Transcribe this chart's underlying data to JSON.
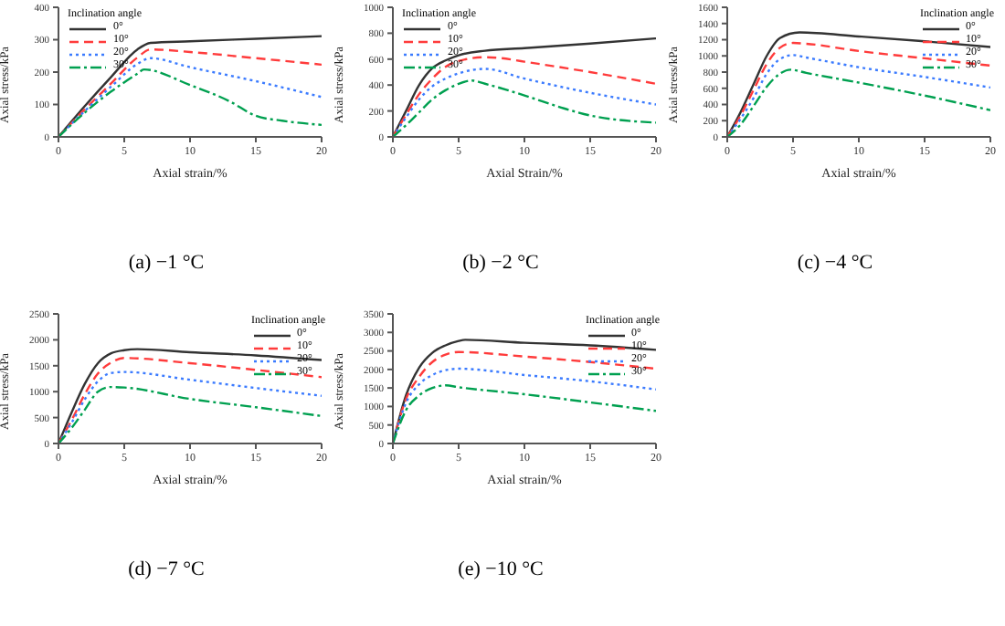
{
  "chart_data": [
    {
      "type": "line",
      "xlabel": "Axial strain/%",
      "ylabel": "Axial stress/kPa",
      "legend_title": "Inclination angle",
      "legend": "top left",
      "xlim": [
        0,
        20
      ],
      "xticks": [
        0,
        5,
        10,
        15,
        20
      ],
      "ylim": [
        0,
        400
      ],
      "yticks": [
        0,
        100,
        200,
        300,
        400
      ],
      "annotations": [
        "(a) −1 °C"
      ],
      "series": [
        {
          "name": "0°",
          "color": "#333333",
          "line_style": "solid",
          "x": [
            0,
            2,
            4,
            6,
            7,
            10,
            15,
            20
          ],
          "values": [
            0,
            95,
            185,
            270,
            290,
            295,
            303,
            311
          ]
        },
        {
          "name": "10°",
          "color": "#ff3b3b",
          "line_style": "dashed",
          "x": [
            0,
            2,
            4,
            6,
            7,
            10,
            15,
            20
          ],
          "values": [
            0,
            85,
            165,
            245,
            270,
            262,
            243,
            223
          ]
        },
        {
          "name": "20°",
          "color": "#3b7bff",
          "line_style": "dotted",
          "x": [
            0,
            2,
            4,
            6,
            7,
            10,
            15,
            20
          ],
          "values": [
            0,
            80,
            155,
            225,
            243,
            215,
            172,
            123
          ]
        },
        {
          "name": "30°",
          "color": "#00a050",
          "line_style": "dashdot",
          "x": [
            0,
            2,
            4,
            6,
            6.5,
            10,
            13,
            15,
            17,
            20
          ],
          "values": [
            0,
            75,
            140,
            195,
            208,
            160,
            110,
            65,
            50,
            37
          ]
        }
      ]
    },
    {
      "type": "line",
      "xlabel": "Axial Strain/%",
      "ylabel": "Axial stress/kPa",
      "legend_title": "Inclination angle",
      "legend": "top left",
      "xlim": [
        0,
        20
      ],
      "xticks": [
        0,
        5,
        10,
        15,
        20
      ],
      "ylim": [
        0,
        1000
      ],
      "yticks": [
        0,
        200,
        400,
        600,
        800,
        1000
      ],
      "annotations": [
        "(b) −2 °C"
      ],
      "series": [
        {
          "name": "0°",
          "color": "#333333",
          "line_style": "solid",
          "x": [
            0,
            1,
            2,
            3,
            4,
            5,
            7,
            10,
            15,
            20
          ],
          "values": [
            0,
            200,
            400,
            530,
            590,
            630,
            665,
            685,
            720,
            760
          ]
        },
        {
          "name": "10°",
          "color": "#ff3b3b",
          "line_style": "dashed",
          "x": [
            0,
            1,
            2,
            3,
            4,
            5,
            7,
            8,
            10,
            15,
            20
          ],
          "values": [
            0,
            170,
            330,
            450,
            540,
            585,
            615,
            610,
            580,
            500,
            410
          ]
        },
        {
          "name": "20°",
          "color": "#3b7bff",
          "line_style": "dotted",
          "x": [
            0,
            1,
            2,
            3,
            4,
            5,
            7,
            10,
            15,
            20
          ],
          "values": [
            0,
            150,
            290,
            390,
            450,
            490,
            525,
            450,
            340,
            250
          ]
        },
        {
          "name": "30°",
          "color": "#00a050",
          "line_style": "dashdot",
          "x": [
            0,
            1,
            2,
            3,
            4,
            5,
            6,
            7,
            10,
            13,
            15,
            20
          ],
          "values": [
            0,
            90,
            190,
            290,
            360,
            410,
            435,
            410,
            320,
            220,
            165,
            110
          ]
        }
      ]
    },
    {
      "type": "line",
      "xlabel": "Axial strain/%",
      "ylabel": "Axial stress/kPa",
      "legend_title": "Inclination angle",
      "legend": "top right",
      "xlim": [
        0,
        20
      ],
      "xticks": [
        0,
        5,
        10,
        15,
        20
      ],
      "ylim": [
        0,
        1600
      ],
      "yticks": [
        0,
        200,
        400,
        600,
        800,
        1000,
        1200,
        1400,
        1600
      ],
      "annotations": [
        "(c) −4 °C"
      ],
      "series": [
        {
          "name": "0°",
          "color": "#333333",
          "line_style": "solid",
          "x": [
            0,
            1,
            2,
            3,
            4,
            5.5,
            10,
            15,
            20
          ],
          "values": [
            0,
            300,
            650,
            1000,
            1220,
            1290,
            1240,
            1180,
            1110
          ]
        },
        {
          "name": "10°",
          "color": "#ff3b3b",
          "line_style": "dashed",
          "x": [
            0,
            1,
            2,
            3,
            4,
            5,
            6,
            10,
            15,
            20
          ],
          "values": [
            0,
            260,
            580,
            900,
            1100,
            1160,
            1150,
            1060,
            970,
            880
          ]
        },
        {
          "name": "20°",
          "color": "#3b7bff",
          "line_style": "dotted",
          "x": [
            0,
            1,
            2,
            3,
            4,
            5,
            6,
            10,
            15,
            20
          ],
          "values": [
            0,
            220,
            480,
            780,
            960,
            1010,
            980,
            860,
            740,
            610
          ]
        },
        {
          "name": "30°",
          "color": "#00a050",
          "line_style": "dashdot",
          "x": [
            0,
            1,
            2,
            3,
            4,
            4.8,
            6,
            10,
            15,
            20
          ],
          "values": [
            0,
            150,
            380,
            620,
            780,
            830,
            790,
            670,
            510,
            330
          ]
        }
      ]
    },
    {
      "type": "line",
      "xlabel": "Axial strain/%",
      "ylabel": "Axial stress/kPa",
      "legend_title": "Inclination angle",
      "legend": "top right",
      "xlim": [
        0,
        20
      ],
      "xticks": [
        0,
        5,
        10,
        15,
        20
      ],
      "ylim": [
        0,
        2500
      ],
      "yticks": [
        0,
        500,
        1000,
        1500,
        2000,
        2500
      ],
      "annotations": [
        "(d) −7 °C"
      ],
      "series": [
        {
          "name": "0°",
          "color": "#333333",
          "line_style": "solid",
          "x": [
            0,
            1,
            2,
            3,
            4,
            5,
            6,
            10,
            15,
            20
          ],
          "values": [
            0,
            600,
            1150,
            1550,
            1740,
            1800,
            1820,
            1760,
            1700,
            1610
          ]
        },
        {
          "name": "10°",
          "color": "#ff3b3b",
          "line_style": "dashed",
          "x": [
            0,
            1,
            2,
            3,
            4,
            5,
            10,
            15,
            20
          ],
          "values": [
            0,
            450,
            950,
            1350,
            1560,
            1650,
            1550,
            1420,
            1280
          ]
        },
        {
          "name": "20°",
          "color": "#3b7bff",
          "line_style": "dotted",
          "x": [
            0,
            1,
            2,
            3,
            4,
            5,
            10,
            15,
            20
          ],
          "values": [
            0,
            400,
            850,
            1200,
            1360,
            1380,
            1230,
            1070,
            920
          ]
        },
        {
          "name": "30°",
          "color": "#00a050",
          "line_style": "dashdot",
          "x": [
            0,
            1,
            2,
            3,
            4,
            5,
            10,
            15,
            20
          ],
          "values": [
            0,
            300,
            650,
            1000,
            1090,
            1080,
            860,
            700,
            530
          ]
        }
      ]
    },
    {
      "type": "line",
      "xlabel": "Axial strain/%",
      "ylabel": "Axial stress/kPa",
      "legend_title": "Inclination angle",
      "legend": "top right",
      "xlim": [
        0,
        20
      ],
      "xticks": [
        0,
        5,
        10,
        15,
        20
      ],
      "ylim": [
        0,
        3500
      ],
      "yticks": [
        0,
        500,
        1000,
        1500,
        2000,
        2500,
        3000,
        3500
      ],
      "annotations": [
        "(e) −10 °C"
      ],
      "series": [
        {
          "name": "0°",
          "color": "#333333",
          "line_style": "solid",
          "x": [
            0,
            1,
            2,
            3,
            4,
            5,
            5.5,
            10,
            15,
            20
          ],
          "values": [
            0,
            1300,
            2050,
            2450,
            2650,
            2770,
            2800,
            2720,
            2650,
            2530
          ]
        },
        {
          "name": "10°",
          "color": "#ff3b3b",
          "line_style": "dashed",
          "x": [
            0,
            1,
            2,
            3,
            4,
            5,
            10,
            15,
            20
          ],
          "values": [
            0,
            1200,
            1800,
            2200,
            2400,
            2470,
            2350,
            2200,
            2020
          ]
        },
        {
          "name": "20°",
          "color": "#3b7bff",
          "line_style": "dotted",
          "x": [
            0,
            1,
            2,
            3,
            4,
            5,
            10,
            15,
            20
          ],
          "values": [
            0,
            1100,
            1600,
            1850,
            1980,
            2020,
            1850,
            1680,
            1460
          ]
        },
        {
          "name": "30°",
          "color": "#00a050",
          "line_style": "dashdot",
          "x": [
            0,
            1,
            2,
            3,
            4,
            5,
            10,
            15,
            20
          ],
          "values": [
            0,
            900,
            1300,
            1500,
            1570,
            1520,
            1330,
            1110,
            880
          ]
        }
      ]
    }
  ]
}
